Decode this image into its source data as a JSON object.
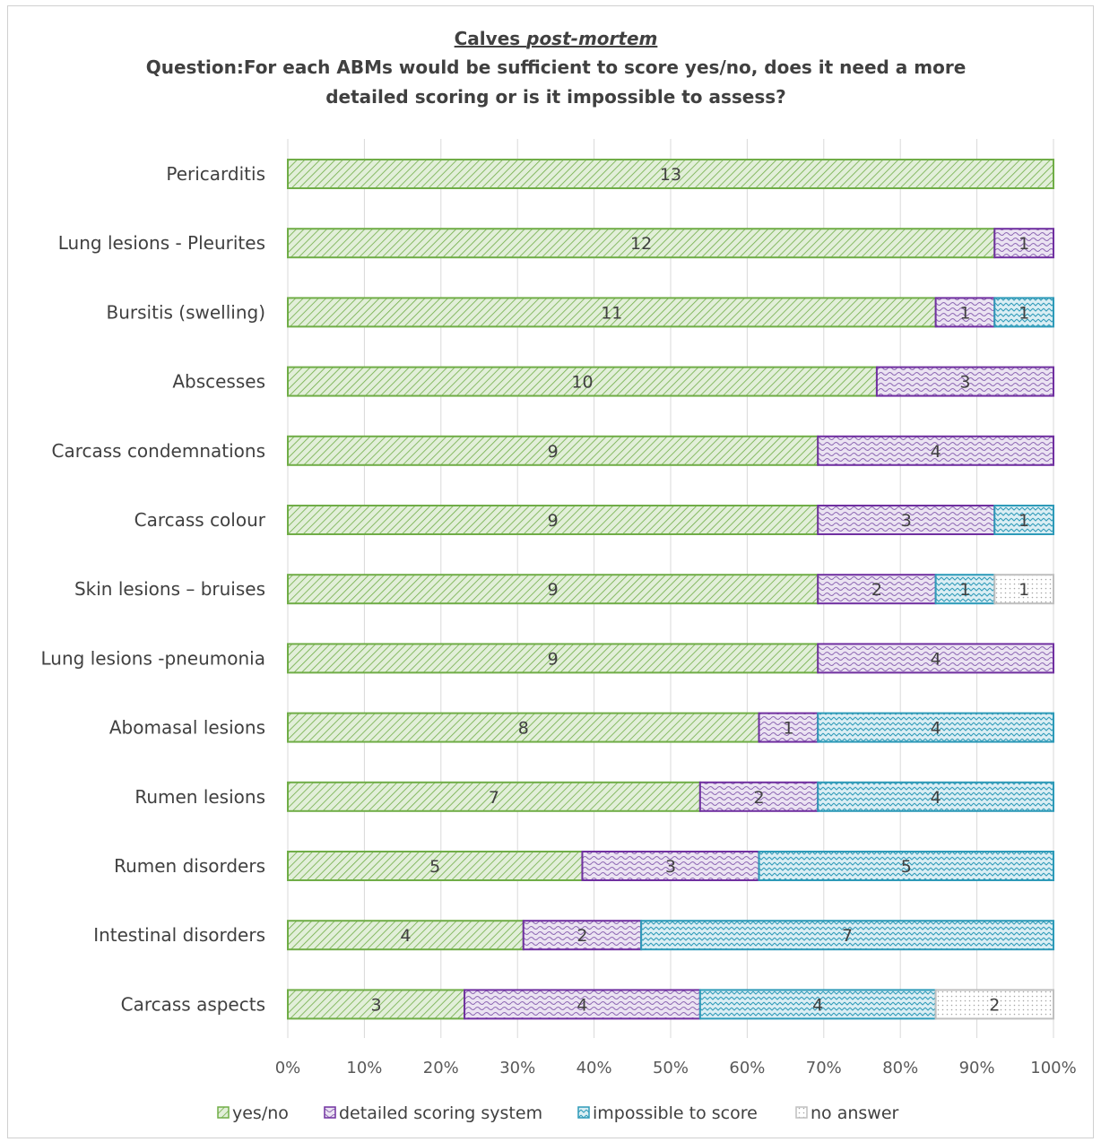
{
  "chart_data": {
    "type": "bar",
    "orientation": "horizontal",
    "stacked": "percent",
    "title_line1_a": "Calves ",
    "title_line1_b": "post-mortem",
    "title_line2": "Question:For each ABMs would be sufficient to score yes/no, does it need a more",
    "title_line3": "detailed scoring or is it impossible to assess?",
    "categories": [
      "Pericarditis",
      "Lung lesions - Pleurites",
      "Bursitis (swelling)",
      "Abscesses",
      "Carcass condemnations",
      "Carcass colour",
      "Skin lesions – bruises",
      "Lung lesions -pneumonia",
      "Abomasal lesions",
      "Rumen lesions",
      "Rumen disorders",
      "Intestinal disorders",
      "Carcass aspects"
    ],
    "series": [
      {
        "name": "yes/no",
        "values": [
          13,
          12,
          11,
          10,
          9,
          9,
          9,
          9,
          8,
          7,
          5,
          4,
          3
        ],
        "color": "#70ad47",
        "fill": "#e2efd9"
      },
      {
        "name": "detailed scoring system",
        "values": [
          0,
          1,
          1,
          3,
          4,
          3,
          2,
          4,
          1,
          2,
          3,
          2,
          4
        ],
        "color": "#7030a0",
        "fill": "#e6dcef"
      },
      {
        "name": "impossible to score",
        "values": [
          0,
          0,
          1,
          0,
          0,
          1,
          1,
          0,
          4,
          4,
          5,
          7,
          4
        ],
        "color": "#2e9ab8",
        "fill": "#dbeef4"
      },
      {
        "name": "no answer",
        "values": [
          0,
          0,
          0,
          0,
          0,
          0,
          1,
          0,
          0,
          0,
          0,
          0,
          2
        ],
        "color": "#bfbfbf",
        "fill": "#f4f4f4"
      }
    ],
    "xlim": [
      0,
      100
    ],
    "xticks": [
      "0%",
      "10%",
      "20%",
      "30%",
      "40%",
      "50%",
      "60%",
      "70%",
      "80%",
      "90%",
      "100%"
    ],
    "grid": true,
    "legend_position": "bottom"
  }
}
